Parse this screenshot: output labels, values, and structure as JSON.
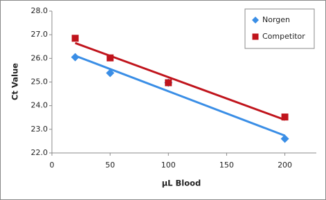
{
  "chart_data": {
    "type": "scatter",
    "x_label": "µL Blood",
    "y_label": "Ct Value",
    "series": [
      {
        "name": "Norgen",
        "color": "#3a8ee6",
        "marker": "diamond",
        "x": [
          20,
          50,
          100,
          200
        ],
        "values": [
          26.05,
          25.38,
          24.97,
          22.6
        ]
      },
      {
        "name": "Competitor",
        "color": "#c0141c",
        "marker": "square",
        "x": [
          20,
          50,
          100,
          200
        ],
        "values": [
          26.85,
          26.02,
          24.97,
          23.52
        ]
      }
    ],
    "trendline": true,
    "xlim": [
      0,
      227
    ],
    "xticks": [
      0,
      50,
      100,
      150,
      200
    ],
    "ylim": [
      22,
      28
    ],
    "yticks": [
      {
        "value": 22,
        "label": "22.0"
      },
      {
        "value": 23,
        "label": "23.0"
      },
      {
        "value": 24,
        "label": "24.0"
      },
      {
        "value": 25,
        "label": "25.0"
      },
      {
        "value": 26,
        "label": "26.0"
      },
      {
        "value": 27,
        "label": "27.0"
      },
      {
        "value": 28,
        "label": "28.0"
      }
    ],
    "legend": "top-right"
  }
}
